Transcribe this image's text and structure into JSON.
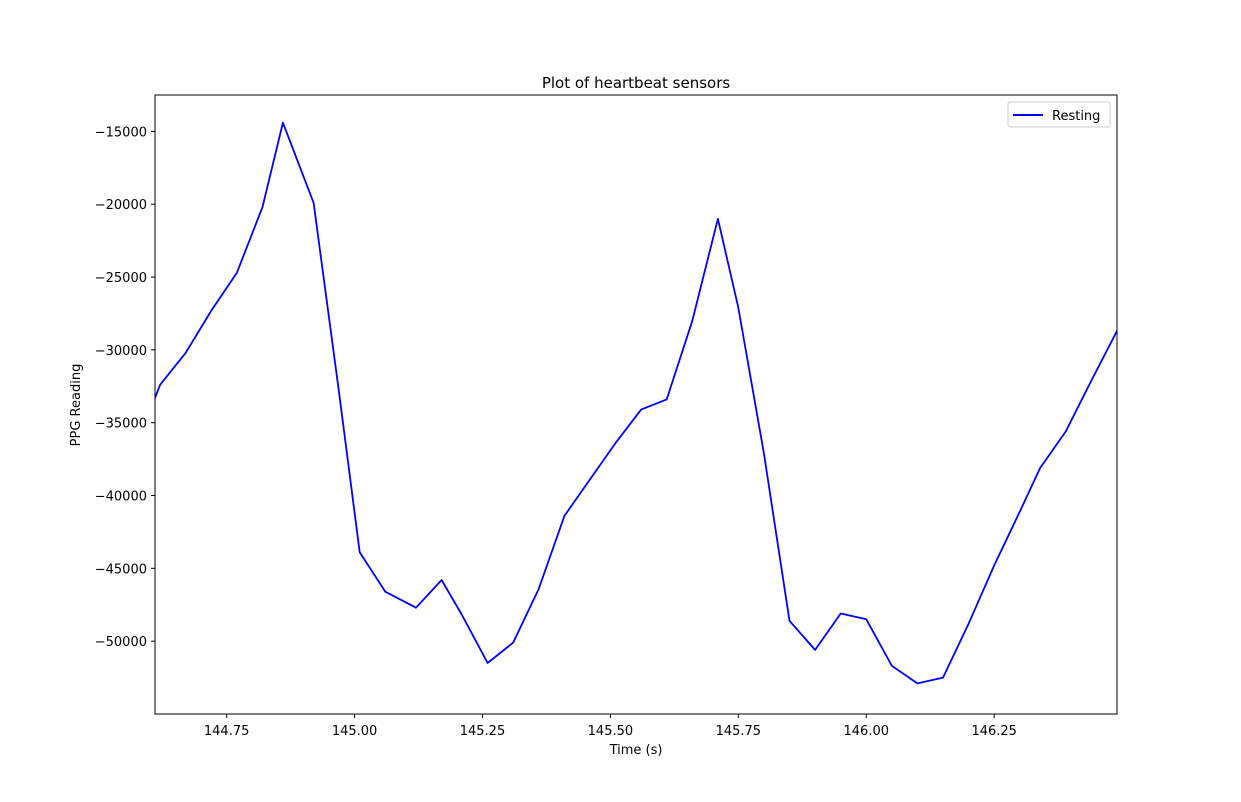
{
  "chart_data": {
    "type": "line",
    "title": "Plot of heartbeat sensors",
    "xlabel": "Time (s)",
    "ylabel": "PPG Reading",
    "xlim": [
      144.61,
      146.49
    ],
    "ylim": [
      -55000,
      -12500
    ],
    "xticks": [
      144.75,
      145.0,
      145.25,
      145.5,
      145.75,
      146.0,
      146.25
    ],
    "xtick_labels": [
      "144.75",
      "145.00",
      "145.25",
      "145.50",
      "145.75",
      "146.00",
      "146.25"
    ],
    "yticks": [
      -50000,
      -45000,
      -40000,
      -35000,
      -30000,
      -25000,
      -20000,
      -15000
    ],
    "ytick_labels": [
      "−50000",
      "−45000",
      "−40000",
      "−35000",
      "−30000",
      "−25000",
      "−20000",
      "−15000"
    ],
    "grid": false,
    "legend_position": "top-right",
    "series": [
      {
        "name": "Resting",
        "color": "#0000ff",
        "x": [
          144.61,
          144.62,
          144.67,
          144.72,
          144.77,
          144.82,
          144.86,
          144.92,
          144.97,
          145.01,
          145.06,
          145.12,
          145.17,
          145.21,
          145.26,
          145.31,
          145.36,
          145.41,
          145.46,
          145.51,
          145.56,
          145.61,
          145.66,
          145.71,
          145.75,
          145.8,
          145.85,
          145.9,
          145.95,
          146.0,
          146.05,
          146.1,
          146.15,
          146.2,
          146.25,
          146.3,
          146.34,
          146.39,
          146.44,
          146.49
        ],
        "y": [
          -33300,
          -32400,
          -30200,
          -27300,
          -24700,
          -20200,
          -14400,
          -19900,
          -33000,
          -43900,
          -46600,
          -47700,
          -45800,
          -48200,
          -51500,
          -50100,
          -46400,
          -41400,
          -38900,
          -36400,
          -34100,
          -33400,
          -28000,
          -21000,
          -27100,
          -37100,
          -48600,
          -50600,
          -48100,
          -48500,
          -51700,
          -52900,
          -52500,
          -48800,
          -44800,
          -41100,
          -38100,
          -35600,
          -32100,
          -28700
        ]
      }
    ]
  }
}
